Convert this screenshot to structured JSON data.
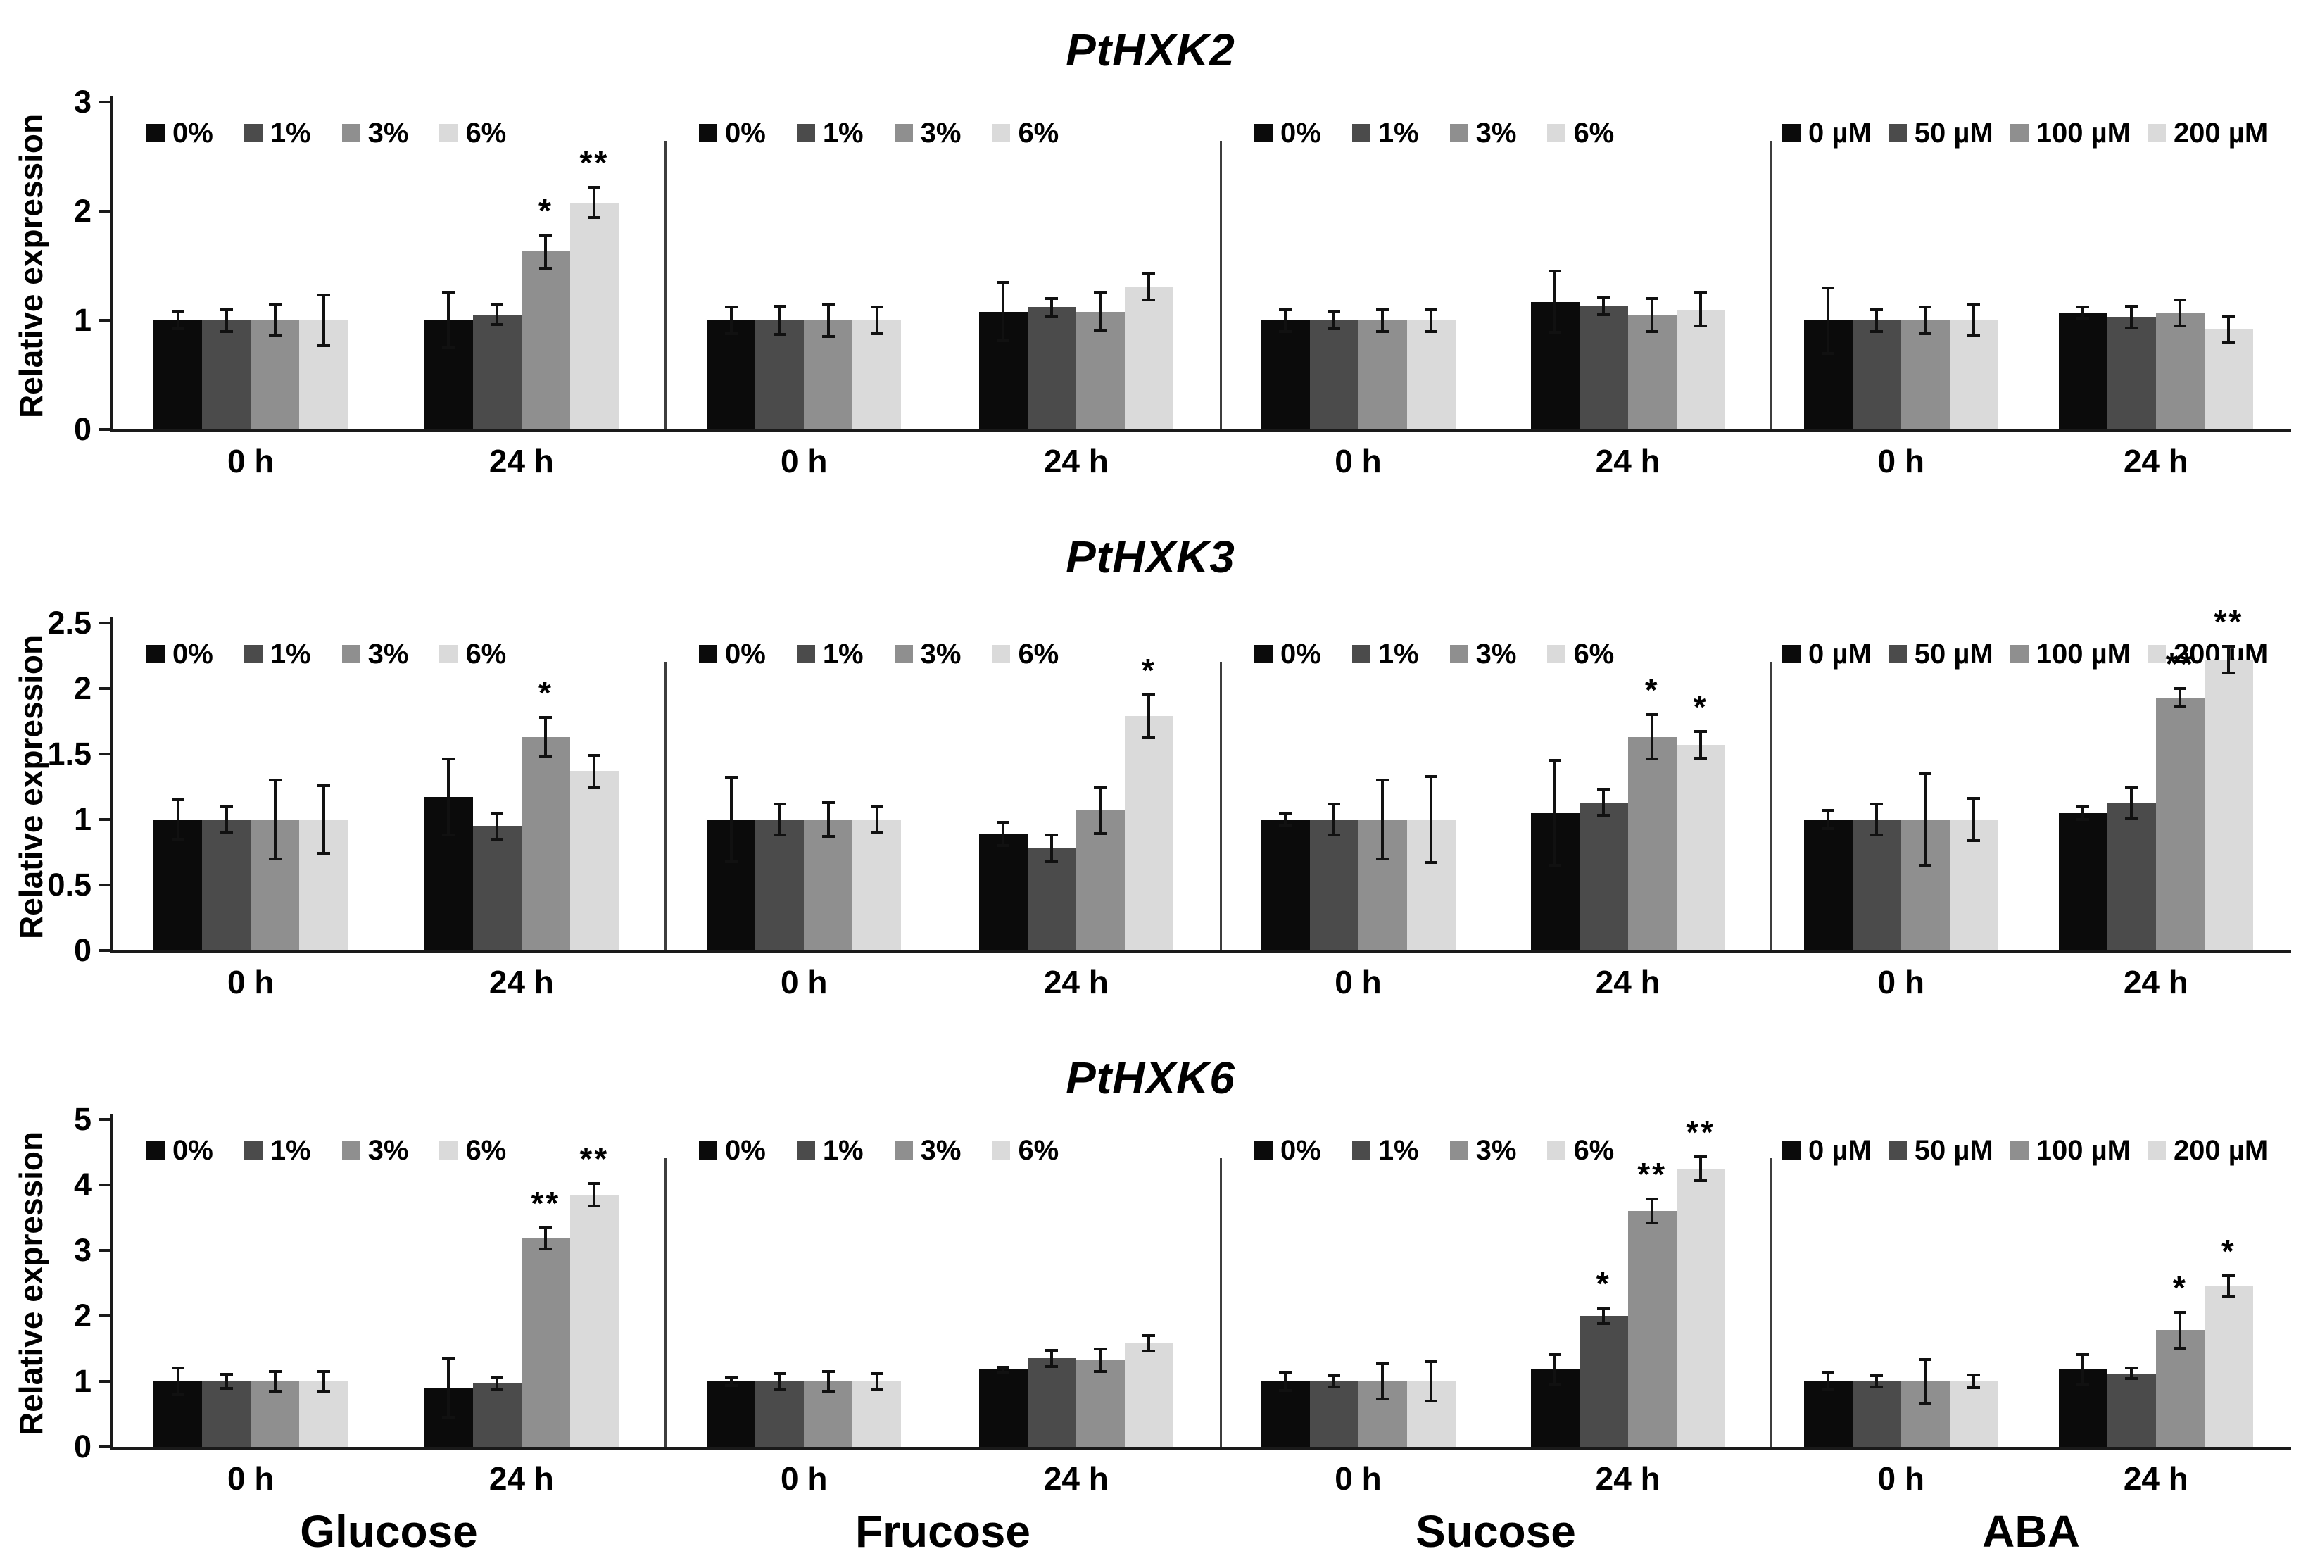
{
  "figure": {
    "y_axis_label": "Relative expression",
    "time_labels": [
      "0 h",
      "24 h"
    ],
    "treatment_labels": [
      "Glucose",
      "Frucose",
      "Sucose",
      "ABA"
    ],
    "series_colors": [
      "#0b0b0b",
      "#4b4b4b",
      "#8f8f8f",
      "#dadada"
    ],
    "axis_color": "#1a1a1a",
    "significance_symbols": [
      "*",
      "**"
    ]
  },
  "chart_data": [
    {
      "type": "bar",
      "title": "PtHXK2",
      "ylabel": "Relative expression",
      "ylim": [
        0,
        3
      ],
      "yticks": [
        "0",
        "1",
        "2",
        "3"
      ],
      "categories": [
        "0 h",
        "24 h"
      ],
      "legend_position": "top",
      "grid": false,
      "panels": [
        {
          "treatment": "Glucose",
          "legend": [
            "0%",
            "1%",
            "3%",
            "6%"
          ],
          "series": [
            {
              "name": "0%",
              "values": [
                1.0,
                1.0
              ],
              "errors": [
                0.08,
                0.25
              ],
              "sig": [
                "",
                ""
              ]
            },
            {
              "name": "1%",
              "values": [
                1.0,
                1.05
              ],
              "errors": [
                0.1,
                0.09
              ],
              "sig": [
                "",
                ""
              ]
            },
            {
              "name": "3%",
              "values": [
                1.0,
                1.63
              ],
              "errors": [
                0.14,
                0.15
              ],
              "sig": [
                "",
                "*"
              ]
            },
            {
              "name": "6%",
              "values": [
                1.0,
                2.08
              ],
              "errors": [
                0.23,
                0.14
              ],
              "sig": [
                "",
                "**"
              ]
            }
          ]
        },
        {
          "treatment": "Frucose",
          "legend": [
            "0%",
            "1%",
            "3%",
            "6%"
          ],
          "series": [
            {
              "name": "0%",
              "values": [
                1.0,
                1.08
              ],
              "errors": [
                0.12,
                0.27
              ],
              "sig": [
                "",
                ""
              ]
            },
            {
              "name": "1%",
              "values": [
                1.0,
                1.12
              ],
              "errors": [
                0.13,
                0.08
              ],
              "sig": [
                "",
                ""
              ]
            },
            {
              "name": "3%",
              "values": [
                1.0,
                1.08
              ],
              "errors": [
                0.15,
                0.17
              ],
              "sig": [
                "",
                ""
              ]
            },
            {
              "name": "6%",
              "values": [
                1.0,
                1.31
              ],
              "errors": [
                0.12,
                0.12
              ],
              "sig": [
                "",
                ""
              ]
            }
          ]
        },
        {
          "treatment": "Sucose",
          "legend": [
            "0%",
            "1%",
            "3%",
            "6%"
          ],
          "series": [
            {
              "name": "0%",
              "values": [
                1.0,
                1.17
              ],
              "errors": [
                0.1,
                0.28
              ],
              "sig": [
                "",
                ""
              ]
            },
            {
              "name": "1%",
              "values": [
                1.0,
                1.13
              ],
              "errors": [
                0.08,
                0.08
              ],
              "sig": [
                "",
                ""
              ]
            },
            {
              "name": "3%",
              "values": [
                1.0,
                1.05
              ],
              "errors": [
                0.1,
                0.15
              ],
              "sig": [
                "",
                ""
              ]
            },
            {
              "name": "6%",
              "values": [
                1.0,
                1.1
              ],
              "errors": [
                0.1,
                0.15
              ],
              "sig": [
                "",
                ""
              ]
            }
          ]
        },
        {
          "treatment": "ABA",
          "legend": [
            "0 µM",
            "50 µM",
            "100 µM",
            "200 µM"
          ],
          "series": [
            {
              "name": "0 µM",
              "values": [
                1.0,
                1.07
              ],
              "errors": [
                0.3,
                0.05
              ],
              "sig": [
                "",
                ""
              ]
            },
            {
              "name": "50 µM",
              "values": [
                1.0,
                1.03
              ],
              "errors": [
                0.1,
                0.1
              ],
              "sig": [
                "",
                ""
              ]
            },
            {
              "name": "100 µM",
              "values": [
                1.0,
                1.07
              ],
              "errors": [
                0.12,
                0.12
              ],
              "sig": [
                "",
                ""
              ]
            },
            {
              "name": "200 µM",
              "values": [
                1.0,
                0.92
              ],
              "errors": [
                0.14,
                0.12
              ],
              "sig": [
                "",
                ""
              ]
            }
          ]
        }
      ]
    },
    {
      "type": "bar",
      "title": "PtHXK3",
      "ylabel": "Relative expression",
      "ylim": [
        0,
        2.5
      ],
      "yticks": [
        "0",
        "0.5",
        "1",
        "1.5",
        "2",
        "2.5"
      ],
      "categories": [
        "0 h",
        "24 h"
      ],
      "legend_position": "top",
      "grid": false,
      "panels": [
        {
          "treatment": "Glucose",
          "legend": [
            "0%",
            "1%",
            "3%",
            "6%"
          ],
          "series": [
            {
              "name": "0%",
              "values": [
                1.0,
                1.17
              ],
              "errors": [
                0.15,
                0.29
              ],
              "sig": [
                "",
                ""
              ]
            },
            {
              "name": "1%",
              "values": [
                1.0,
                0.95
              ],
              "errors": [
                0.1,
                0.1
              ],
              "sig": [
                "",
                ""
              ]
            },
            {
              "name": "3%",
              "values": [
                1.0,
                1.63
              ],
              "errors": [
                0.3,
                0.15
              ],
              "sig": [
                "",
                "*"
              ]
            },
            {
              "name": "6%",
              "values": [
                1.0,
                1.37
              ],
              "errors": [
                0.26,
                0.12
              ],
              "sig": [
                "",
                ""
              ]
            }
          ]
        },
        {
          "treatment": "Frucose",
          "legend": [
            "0%",
            "1%",
            "3%",
            "6%"
          ],
          "series": [
            {
              "name": "0%",
              "values": [
                1.0,
                0.89
              ],
              "errors": [
                0.32,
                0.09
              ],
              "sig": [
                "",
                ""
              ]
            },
            {
              "name": "1%",
              "values": [
                1.0,
                0.78
              ],
              "errors": [
                0.12,
                0.1
              ],
              "sig": [
                "",
                ""
              ]
            },
            {
              "name": "3%",
              "values": [
                1.0,
                1.07
              ],
              "errors": [
                0.13,
                0.18
              ],
              "sig": [
                "",
                ""
              ]
            },
            {
              "name": "6%",
              "values": [
                1.0,
                1.79
              ],
              "errors": [
                0.1,
                0.16
              ],
              "sig": [
                "",
                "*"
              ]
            }
          ]
        },
        {
          "treatment": "Sucose",
          "legend": [
            "0%",
            "1%",
            "3%",
            "6%"
          ],
          "series": [
            {
              "name": "0%",
              "values": [
                1.0,
                1.05
              ],
              "errors": [
                0.05,
                0.4
              ],
              "sig": [
                "",
                ""
              ]
            },
            {
              "name": "1%",
              "values": [
                1.0,
                1.13
              ],
              "errors": [
                0.12,
                0.1
              ],
              "sig": [
                "",
                ""
              ]
            },
            {
              "name": "3%",
              "values": [
                1.0,
                1.63
              ],
              "errors": [
                0.3,
                0.17
              ],
              "sig": [
                "",
                "*"
              ]
            },
            {
              "name": "6%",
              "values": [
                1.0,
                1.57
              ],
              "errors": [
                0.33,
                0.1
              ],
              "sig": [
                "",
                "*"
              ]
            }
          ]
        },
        {
          "treatment": "ABA",
          "legend": [
            "0 µM",
            "50 µM",
            "100 µM",
            "200 µM"
          ],
          "series": [
            {
              "name": "0 µM",
              "values": [
                1.0,
                1.05
              ],
              "errors": [
                0.07,
                0.05
              ],
              "sig": [
                "",
                ""
              ]
            },
            {
              "name": "50 µM",
              "values": [
                1.0,
                1.13
              ],
              "errors": [
                0.12,
                0.12
              ],
              "sig": [
                "",
                ""
              ]
            },
            {
              "name": "100 µM",
              "values": [
                1.0,
                1.93
              ],
              "errors": [
                0.35,
                0.07
              ],
              "sig": [
                "",
                "**"
              ]
            },
            {
              "name": "200 µM",
              "values": [
                1.0,
                2.22
              ],
              "errors": [
                0.16,
                0.1
              ],
              "sig": [
                "",
                "**"
              ]
            }
          ]
        }
      ]
    },
    {
      "type": "bar",
      "title": "PtHXK6",
      "ylabel": "Relative expression",
      "ylim": [
        0,
        5
      ],
      "yticks": [
        "0",
        "1",
        "2",
        "3",
        "4",
        "5"
      ],
      "categories": [
        "0 h",
        "24 h"
      ],
      "legend_position": "top",
      "grid": false,
      "panels": [
        {
          "treatment": "Glucose",
          "legend": [
            "0%",
            "1%",
            "3%",
            "6%"
          ],
          "series": [
            {
              "name": "0%",
              "values": [
                1.0,
                0.9
              ],
              "errors": [
                0.2,
                0.45
              ],
              "sig": [
                "",
                ""
              ]
            },
            {
              "name": "1%",
              "values": [
                1.0,
                0.97
              ],
              "errors": [
                0.11,
                0.1
              ],
              "sig": [
                "",
                ""
              ]
            },
            {
              "name": "3%",
              "values": [
                1.0,
                3.18
              ],
              "errors": [
                0.15,
                0.16
              ],
              "sig": [
                "",
                "**"
              ]
            },
            {
              "name": "6%",
              "values": [
                1.0,
                3.85
              ],
              "errors": [
                0.15,
                0.17
              ],
              "sig": [
                "",
                "**"
              ]
            }
          ]
        },
        {
          "treatment": "Frucose",
          "legend": [
            "0%",
            "1%",
            "3%",
            "6%"
          ],
          "series": [
            {
              "name": "0%",
              "values": [
                1.0,
                1.18
              ],
              "errors": [
                0.06,
                0.04
              ],
              "sig": [
                "",
                ""
              ]
            },
            {
              "name": "1%",
              "values": [
                1.0,
                1.35
              ],
              "errors": [
                0.12,
                0.12
              ],
              "sig": [
                "",
                ""
              ]
            },
            {
              "name": "3%",
              "values": [
                1.0,
                1.32
              ],
              "errors": [
                0.15,
                0.17
              ],
              "sig": [
                "",
                ""
              ]
            },
            {
              "name": "6%",
              "values": [
                1.0,
                1.58
              ],
              "errors": [
                0.12,
                0.12
              ],
              "sig": [
                "",
                ""
              ]
            }
          ]
        },
        {
          "treatment": "Sucose",
          "legend": [
            "0%",
            "1%",
            "3%",
            "6%"
          ],
          "series": [
            {
              "name": "0%",
              "values": [
                1.0,
                1.18
              ],
              "errors": [
                0.14,
                0.23
              ],
              "sig": [
                "",
                ""
              ]
            },
            {
              "name": "1%",
              "values": [
                1.0,
                2.0
              ],
              "errors": [
                0.09,
                0.12
              ],
              "sig": [
                "",
                "*"
              ]
            },
            {
              "name": "3%",
              "values": [
                1.0,
                3.6
              ],
              "errors": [
                0.27,
                0.18
              ],
              "sig": [
                "",
                "**"
              ]
            },
            {
              "name": "6%",
              "values": [
                1.0,
                4.25
              ],
              "errors": [
                0.3,
                0.18
              ],
              "sig": [
                "",
                "**"
              ]
            }
          ]
        },
        {
          "treatment": "ABA",
          "legend": [
            "0 µM",
            "50 µM",
            "100 µM",
            "200 µM"
          ],
          "series": [
            {
              "name": "0 µM",
              "values": [
                1.0,
                1.18
              ],
              "errors": [
                0.13,
                0.23
              ],
              "sig": [
                "",
                ""
              ]
            },
            {
              "name": "50 µM",
              "values": [
                1.0,
                1.12
              ],
              "errors": [
                0.09,
                0.08
              ],
              "sig": [
                "",
                ""
              ]
            },
            {
              "name": "100 µM",
              "values": [
                1.0,
                1.78
              ],
              "errors": [
                0.33,
                0.27
              ],
              "sig": [
                "",
                "*"
              ]
            },
            {
              "name": "200 µM",
              "values": [
                1.0,
                2.45
              ],
              "errors": [
                0.1,
                0.16
              ],
              "sig": [
                "",
                "*"
              ]
            }
          ]
        }
      ]
    }
  ]
}
